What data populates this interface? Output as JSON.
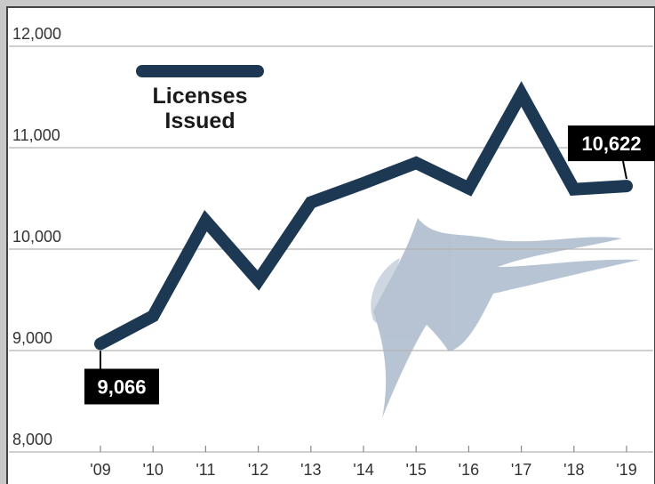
{
  "chart_data": {
    "type": "line",
    "categories": [
      "'09",
      "'10",
      "'11",
      "'12",
      "'13",
      "'14",
      "'15",
      "'16",
      "'17",
      "'18",
      "'19"
    ],
    "series": [
      {
        "name": "Licenses Issued",
        "color": "#1c3852",
        "values": [
          9066,
          9340,
          10280,
          9690,
          10460,
          10650,
          10850,
          10600,
          11530,
          10590,
          10622
        ],
        "value_labels": [
          "9,066",
          null,
          null,
          null,
          null,
          null,
          null,
          null,
          null,
          null,
          "10,622"
        ]
      }
    ],
    "ylim": [
      8000,
      12000
    ],
    "yticks": [
      {
        "value": 8000,
        "label": "8,000"
      },
      {
        "value": 9000,
        "label": "9,000"
      },
      {
        "value": 10000,
        "label": "10,000"
      },
      {
        "value": 11000,
        "label": "11,000"
      },
      {
        "value": 12000,
        "label": "12,000"
      }
    ],
    "grid": true,
    "legend": "top-left"
  }
}
